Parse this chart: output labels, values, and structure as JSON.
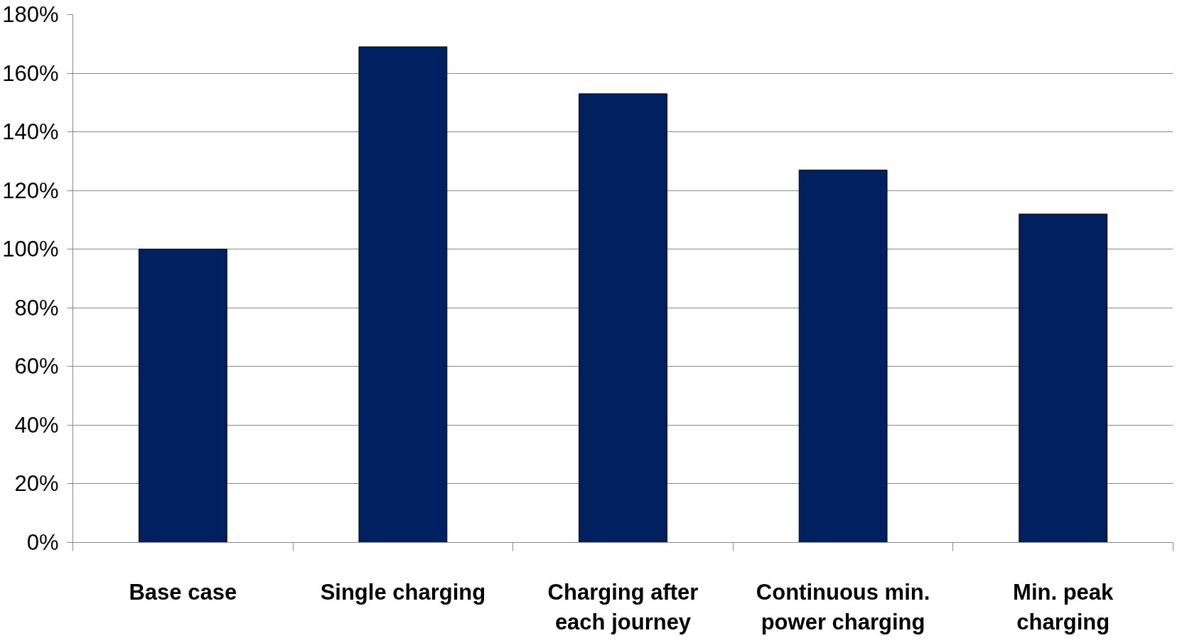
{
  "chart_data": {
    "type": "bar",
    "categories": [
      "Base case",
      "Single charging",
      "Charging after each journey",
      "Continuous min. power charging",
      "Min. peak charging"
    ],
    "values": [
      100,
      169,
      153,
      127,
      112
    ],
    "color": "#002060",
    "ylim": [
      0,
      180
    ],
    "yticks": [
      {
        "value": 0,
        "label": "0%"
      },
      {
        "value": 20,
        "label": "20%"
      },
      {
        "value": 40,
        "label": "40%"
      },
      {
        "value": 60,
        "label": "60%"
      },
      {
        "value": 80,
        "label": "80%"
      },
      {
        "value": 100,
        "label": "100%"
      },
      {
        "value": 120,
        "label": "120%"
      },
      {
        "value": 140,
        "label": "140%"
      },
      {
        "value": 160,
        "label": "160%"
      },
      {
        "value": 180,
        "label": "180%"
      }
    ],
    "grid": "y"
  }
}
